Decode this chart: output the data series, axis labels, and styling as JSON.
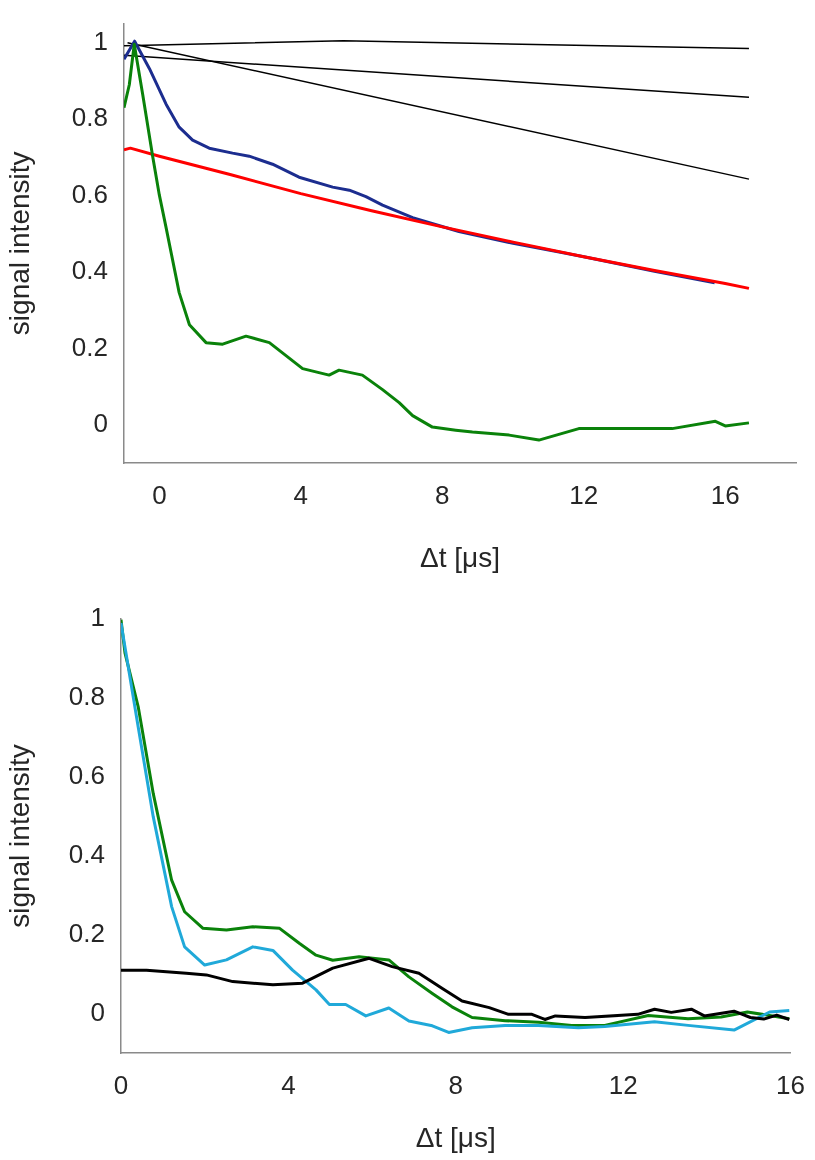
{
  "chart_data": [
    {
      "type": "line",
      "xlabel": "Δt [μs]",
      "ylabel": "signal intensity",
      "xlim": [
        -1,
        18
      ],
      "ylim": [
        -0.1,
        1.05
      ],
      "xticks": [
        0,
        4,
        8,
        12,
        16
      ],
      "yticks": [
        0,
        0.2,
        0.4,
        0.6,
        0.8,
        1
      ],
      "grid": false,
      "legend": false,
      "marker": "none",
      "series": [
        {
          "color": "#000000",
          "x": [
            -1,
            5.2,
            16.67
          ],
          "values": [
            0.992,
            1.005,
            0.985
          ]
        },
        {
          "color": "#000000",
          "x": [
            -1,
            16.67
          ],
          "values": [
            0.967,
            0.857
          ]
        },
        {
          "color": "#000000",
          "x": [
            -0.9,
            16.67
          ],
          "values": [
            1.0,
            0.643
          ]
        },
        {
          "color": "#1c2d8f",
          "x": [
            -1,
            -0.7,
            -0.28,
            0.19,
            0.56,
            0.94,
            1.41,
            2.07,
            2.54,
            3.2,
            3.95,
            4.9,
            5.37,
            5.84,
            6.31,
            7.16,
            8.47,
            10,
            12,
            14,
            15.7
          ],
          "values": [
            0.957,
            1.004,
            0.932,
            0.839,
            0.779,
            0.745,
            0.724,
            0.711,
            0.703,
            0.682,
            0.648,
            0.622,
            0.614,
            0.597,
            0.575,
            0.542,
            0.506,
            0.475,
            0.44,
            0.402,
            0.372
          ]
        },
        {
          "color": "#ff0000",
          "x": [
            -1,
            -0.82,
            0,
            2,
            4,
            6,
            8,
            10,
            12,
            14,
            16,
            16.67
          ],
          "values": [
            0.72,
            0.724,
            0.703,
            0.655,
            0.605,
            0.56,
            0.518,
            0.478,
            0.44,
            0.404,
            0.37,
            0.357
          ]
        },
        {
          "color": "#0a820a",
          "x": [
            -1,
            -0.85,
            -0.71,
            -0.47,
            -0.19,
            0,
            0.19,
            0.56,
            0.85,
            1.32,
            1.79,
            2.45,
            3.11,
            3.58,
            4.05,
            4.8,
            5.08,
            5.74,
            6.31,
            6.78,
            7.16,
            7.72,
            8.38,
            8.85,
            9.89,
            10.73,
            11.86,
            13.56,
            14.5,
            15.72,
            16,
            16.67
          ],
          "values": [
            0.83,
            0.89,
            0.996,
            0.864,
            0.703,
            0.601,
            0.516,
            0.346,
            0.262,
            0.215,
            0.211,
            0.232,
            0.215,
            0.181,
            0.147,
            0.13,
            0.143,
            0.13,
            0.092,
            0.058,
            0.024,
            -0.006,
            -0.014,
            -0.019,
            -0.027,
            -0.04,
            -0.01,
            -0.01,
            -0.01,
            0.009,
            -0.003,
            0.005
          ]
        }
      ]
    },
    {
      "type": "line",
      "xlabel": "Δt [μs]",
      "ylabel": "signal intensity",
      "xlim": [
        0,
        16
      ],
      "ylim": [
        -0.1,
        1
      ],
      "xticks": [
        0,
        4,
        8,
        12,
        16
      ],
      "yticks": [
        0,
        0.2,
        0.4,
        0.6,
        0.8,
        1
      ],
      "grid": false,
      "legend": false,
      "marker": "none",
      "series": [
        {
          "color": "#0a820a",
          "x": [
            0,
            0.095,
            0.41,
            0.77,
            1.21,
            1.52,
            1.96,
            2.52,
            3.15,
            3.79,
            4.26,
            4.66,
            5.06,
            5.69,
            6.4,
            6.88,
            7.44,
            7.91,
            8.39,
            9.18,
            9.98,
            10.77,
            11.56,
            12.6,
            13.55,
            14.34,
            14.97,
            15.5,
            15.97
          ],
          "values": [
            0.998,
            0.914,
            0.778,
            0.558,
            0.338,
            0.258,
            0.216,
            0.212,
            0.22,
            0.216,
            0.178,
            0.148,
            0.135,
            0.144,
            0.136,
            0.093,
            0.051,
            0.017,
            -0.01,
            -0.018,
            -0.022,
            -0.03,
            -0.03,
            -0.005,
            -0.013,
            -0.009,
            0.004,
            -0.005,
            -0.013
          ]
        },
        {
          "color": "#20a9d9",
          "x": [
            0,
            0.41,
            0.77,
            1.21,
            1.52,
            2.0,
            2.52,
            3.15,
            3.63,
            4.1,
            4.66,
            4.98,
            5.37,
            5.85,
            6.4,
            6.88,
            7.44,
            7.83,
            8.39,
            9.18,
            9.98,
            10.93,
            11.56,
            12.75,
            13.55,
            14.65,
            15.5,
            15.97
          ],
          "values": [
            0.99,
            0.727,
            0.499,
            0.271,
            0.169,
            0.123,
            0.136,
            0.169,
            0.16,
            0.11,
            0.06,
            0.023,
            0.023,
            -0.006,
            0.014,
            -0.019,
            -0.031,
            -0.048,
            -0.036,
            -0.03,
            -0.03,
            -0.036,
            -0.033,
            -0.021,
            -0.03,
            -0.042,
            0.004,
            0.008
          ]
        },
        {
          "color": "#000000",
          "x": [
            0,
            0.61,
            1.56,
            2.04,
            2.67,
            3.63,
            4.34,
            5.06,
            5.93,
            6.48,
            7.12,
            7.67,
            8.15,
            8.8,
            9.26,
            9.82,
            10.13,
            10.38,
            11.09,
            12.35,
            12.75,
            13.15,
            13.63,
            13.94,
            14.65,
            15.04,
            15.36,
            15.67,
            15.97
          ],
          "values": [
            0.11,
            0.11,
            0.102,
            0.098,
            0.081,
            0.073,
            0.077,
            0.115,
            0.14,
            0.119,
            0.102,
            0.064,
            0.032,
            0.015,
            -0.002,
            -0.002,
            -0.015,
            -0.006,
            -0.01,
            -0.002,
            0.011,
            0.003,
            0.011,
            -0.006,
            0.006,
            -0.01,
            -0.014,
            -0.004,
            -0.015
          ]
        }
      ]
    }
  ]
}
